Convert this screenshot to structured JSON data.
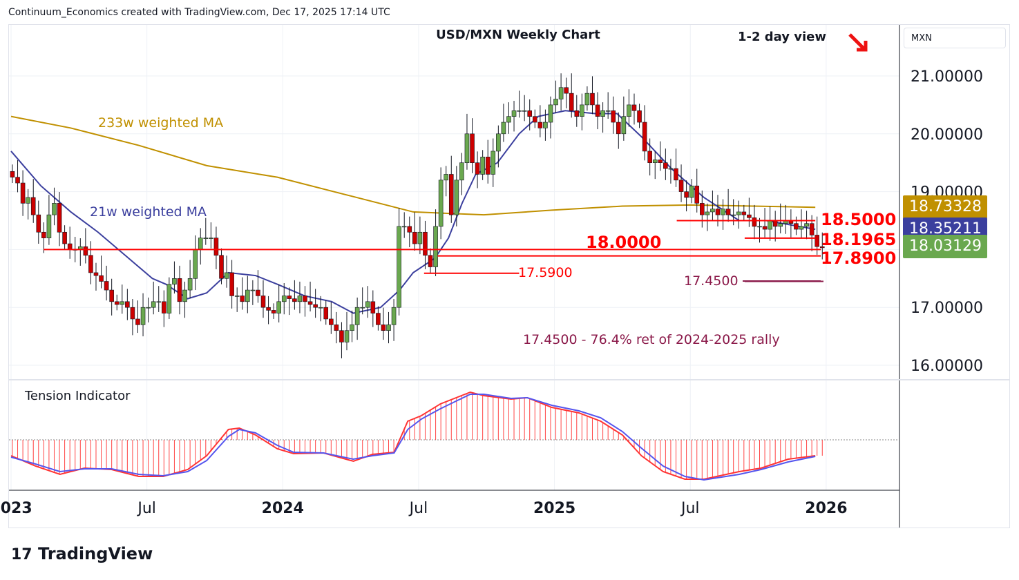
{
  "header": "Continuum_Economics created with TradingView.com, Dec 17, 2025 17:14 UTC",
  "logo": "TradingView",
  "currency_box": "MXN",
  "chart_data": {
    "type": "candlestick",
    "title": "USD/MXN Weekly Chart",
    "subtitle": "1-2 day view",
    "direction_arrow": "down",
    "start_year": 2023.005,
    "week": 0.01923,
    "closes": [
      19.25,
      19.15,
      18.8,
      18.9,
      18.6,
      18.3,
      18.2,
      18.6,
      18.8,
      18.3,
      18.1,
      18.0,
      18.0,
      18.05,
      17.9,
      17.6,
      17.55,
      17.45,
      17.3,
      17.1,
      17.05,
      17.1,
      17.0,
      16.8,
      16.7,
      17.0,
      17.0,
      17.1,
      17.1,
      16.9,
      17.4,
      17.5,
      17.1,
      17.3,
      17.5,
      18.0,
      18.2,
      18.2,
      18.2,
      17.9,
      17.5,
      17.6,
      17.2,
      17.2,
      17.1,
      17.3,
      17.3,
      17.2,
      17.0,
      16.95,
      16.9,
      17.1,
      17.2,
      17.15,
      17.1,
      17.2,
      17.1,
      17.05,
      17.0,
      17.0,
      16.8,
      16.7,
      16.6,
      16.4,
      16.6,
      16.7,
      17.0,
      17.0,
      17.1,
      16.9,
      16.7,
      16.6,
      16.7,
      17.0,
      18.4,
      18.4,
      18.3,
      18.1,
      18.3,
      17.9,
      17.7,
      18.4,
      19.2,
      19.3,
      18.6,
      19.2,
      19.5,
      20.0,
      19.5,
      19.3,
      19.6,
      19.3,
      19.7,
      20.0,
      20.2,
      20.3,
      20.4,
      20.4,
      20.4,
      20.3,
      20.2,
      20.1,
      20.2,
      20.5,
      20.6,
      20.8,
      20.7,
      20.4,
      20.3,
      20.5,
      20.7,
      20.5,
      20.3,
      20.4,
      20.4,
      20.2,
      20.0,
      20.3,
      20.5,
      20.4,
      20.2,
      19.7,
      19.5,
      19.55,
      19.5,
      19.4,
      19.4,
      19.2,
      19.0,
      18.9,
      19.1,
      18.8,
      18.6,
      18.65,
      18.7,
      18.6,
      18.7,
      18.6,
      18.6,
      18.65,
      18.6,
      18.55,
      18.4,
      18.4,
      18.35,
      18.5,
      18.4,
      18.45,
      18.5,
      18.45,
      18.35,
      18.4,
      18.45,
      18.25,
      18.05,
      18.03
    ],
    "ma233": {
      "label": "233w weighted MA",
      "color": "#c09000",
      "points": [
        [
          2023.0,
          20.3
        ],
        [
          2023.22,
          20.1
        ],
        [
          2023.47,
          19.8
        ],
        [
          2023.72,
          19.45
        ],
        [
          2023.98,
          19.25
        ],
        [
          2024.23,
          18.95
        ],
        [
          2024.48,
          18.65
        ],
        [
          2024.74,
          18.6
        ],
        [
          2024.99,
          18.68
        ],
        [
          2025.25,
          18.75
        ],
        [
          2025.5,
          18.77
        ],
        [
          2025.96,
          18.73
        ]
      ]
    },
    "ma21": {
      "label": "21w weighted MA",
      "color": "#3b3f9e",
      "points": [
        [
          2023.0,
          19.7
        ],
        [
          2023.11,
          19.1
        ],
        [
          2023.22,
          18.65
        ],
        [
          2023.32,
          18.3
        ],
        [
          2023.42,
          17.9
        ],
        [
          2023.52,
          17.5
        ],
        [
          2023.57,
          17.4
        ],
        [
          2023.65,
          17.15
        ],
        [
          2023.72,
          17.25
        ],
        [
          2023.8,
          17.6
        ],
        [
          2023.9,
          17.55
        ],
        [
          2023.98,
          17.4
        ],
        [
          2024.08,
          17.2
        ],
        [
          2024.18,
          17.1
        ],
        [
          2024.26,
          16.9
        ],
        [
          2024.36,
          17.0
        ],
        [
          2024.43,
          17.3
        ],
        [
          2024.48,
          17.6
        ],
        [
          2024.56,
          17.85
        ],
        [
          2024.61,
          18.2
        ],
        [
          2024.66,
          18.8
        ],
        [
          2024.71,
          19.3
        ],
        [
          2024.79,
          19.5
        ],
        [
          2024.87,
          20.0
        ],
        [
          2024.94,
          20.3
        ],
        [
          2025.04,
          20.4
        ],
        [
          2025.15,
          20.35
        ],
        [
          2025.23,
          20.35
        ],
        [
          2025.32,
          19.95
        ],
        [
          2025.43,
          19.4
        ],
        [
          2025.55,
          18.9
        ],
        [
          2025.68,
          18.5
        ],
        [
          2025.78,
          18.5
        ],
        [
          2025.96,
          18.35
        ]
      ]
    },
    "levels": [
      {
        "label": "18.5000",
        "value": 18.5,
        "from": 2025.45,
        "to": 2025.96,
        "color": "#ff0000"
      },
      {
        "label": "18.1965",
        "value": 18.1965,
        "from": 2025.7,
        "to": 2025.96,
        "color": "#ff0000"
      },
      {
        "label": "18.0000",
        "value": 18.0,
        "from": 2023.12,
        "to": 2025.98,
        "color": "#ff0000"
      },
      {
        "label": "17.8900",
        "value": 17.89,
        "from": 2024.57,
        "to": 2025.98,
        "color": "#ff0000"
      },
      {
        "label": "17.5900",
        "value": 17.59,
        "from": 2024.52,
        "to": 2024.87,
        "color": "#ff0000"
      },
      {
        "label": "17.4500",
        "value": 17.45,
        "from": 2025.7,
        "to": 2025.99,
        "color": "#8b1a4a"
      }
    ],
    "annotation": "17.4500 - 76.4% ret of 2024-2025 rally",
    "y_ticks": [
      "21.00000",
      "20.00000",
      "19.00000",
      "17.00000",
      "16.00000"
    ],
    "y_tick_values": [
      21,
      20,
      19,
      17,
      16
    ],
    "price_labels": [
      {
        "text": "18.73328",
        "color": "#c09000",
        "value": 18.73328
      },
      {
        "text": "18.35211",
        "color": "#3b3f9e",
        "value": 18.35211
      },
      {
        "text": "18.03129",
        "color": "#6aa84f",
        "value": 18.03129
      }
    ],
    "x_ticks": [
      {
        "label": "2023",
        "t": 2023.0,
        "bold": true
      },
      {
        "label": "Jul",
        "t": 2023.5
      },
      {
        "label": "2024",
        "t": 2024.0,
        "bold": true
      },
      {
        "label": "Jul",
        "t": 2024.5
      },
      {
        "label": "2025",
        "t": 2025.0,
        "bold": true
      },
      {
        "label": "Jul",
        "t": 2025.5
      },
      {
        "label": "2026",
        "t": 2026.0,
        "bold": true
      }
    ],
    "tension": {
      "label": "Tension Indicator",
      "fast": [
        [
          2023.0,
          -23
        ],
        [
          2023.09,
          -38
        ],
        [
          2023.18,
          -50
        ],
        [
          2023.27,
          -41
        ],
        [
          2023.37,
          -43
        ],
        [
          2023.47,
          -53
        ],
        [
          2023.56,
          -53
        ],
        [
          2023.65,
          -43
        ],
        [
          2023.72,
          -23
        ],
        [
          2023.8,
          15
        ],
        [
          2023.84,
          17
        ],
        [
          2023.9,
          7
        ],
        [
          2023.98,
          -13
        ],
        [
          2024.04,
          -20
        ],
        [
          2024.15,
          -19
        ],
        [
          2024.26,
          -31
        ],
        [
          2024.33,
          -21
        ],
        [
          2024.41,
          -18
        ],
        [
          2024.46,
          27
        ],
        [
          2024.51,
          35
        ],
        [
          2024.58,
          52
        ],
        [
          2024.69,
          69
        ],
        [
          2024.74,
          64
        ],
        [
          2024.84,
          59
        ],
        [
          2024.9,
          61
        ],
        [
          2024.99,
          47
        ],
        [
          2025.09,
          39
        ],
        [
          2025.17,
          27
        ],
        [
          2025.25,
          7
        ],
        [
          2025.32,
          -23
        ],
        [
          2025.4,
          -46
        ],
        [
          2025.48,
          -57
        ],
        [
          2025.55,
          -57
        ],
        [
          2025.68,
          -46
        ],
        [
          2025.76,
          -41
        ],
        [
          2025.86,
          -28
        ],
        [
          2025.96,
          -23
        ]
      ],
      "slow": [
        [
          2023.0,
          -25
        ],
        [
          2023.09,
          -35
        ],
        [
          2023.18,
          -46
        ],
        [
          2023.27,
          -42
        ],
        [
          2023.37,
          -42
        ],
        [
          2023.47,
          -50
        ],
        [
          2023.56,
          -52
        ],
        [
          2023.65,
          -46
        ],
        [
          2023.72,
          -30
        ],
        [
          2023.8,
          5
        ],
        [
          2023.84,
          15
        ],
        [
          2023.9,
          10
        ],
        [
          2023.98,
          -8
        ],
        [
          2024.04,
          -18
        ],
        [
          2024.15,
          -19
        ],
        [
          2024.26,
          -28
        ],
        [
          2024.33,
          -23
        ],
        [
          2024.41,
          -19
        ],
        [
          2024.46,
          15
        ],
        [
          2024.51,
          30
        ],
        [
          2024.58,
          45
        ],
        [
          2024.69,
          66
        ],
        [
          2024.74,
          66
        ],
        [
          2024.84,
          60
        ],
        [
          2024.9,
          61
        ],
        [
          2024.99,
          50
        ],
        [
          2025.09,
          42
        ],
        [
          2025.17,
          32
        ],
        [
          2025.25,
          12
        ],
        [
          2025.32,
          -12
        ],
        [
          2025.4,
          -38
        ],
        [
          2025.48,
          -53
        ],
        [
          2025.55,
          -58
        ],
        [
          2025.68,
          -50
        ],
        [
          2025.76,
          -43
        ],
        [
          2025.86,
          -32
        ],
        [
          2025.96,
          -24
        ]
      ]
    }
  }
}
